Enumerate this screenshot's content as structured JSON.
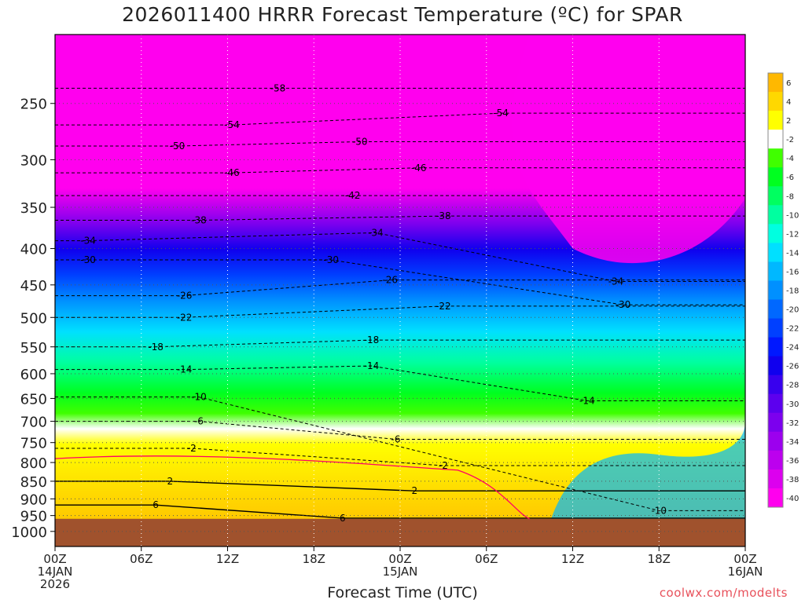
{
  "chart_data": {
    "type": "heatmap",
    "title": "2026011400 HRRR Forecast Temperature (ºC) for SPAR",
    "xlabel": "Forecast Time (UTC)",
    "ylabel": "",
    "y_scale": "log",
    "ylim": [
      1050,
      200
    ],
    "yticks": [
      250,
      300,
      350,
      400,
      450,
      500,
      550,
      600,
      650,
      700,
      750,
      800,
      850,
      900,
      950,
      1000
    ],
    "xlim": [
      0,
      48
    ],
    "xticks": [
      {
        "hour": 0,
        "label": "00Z",
        "sub1": "14JAN",
        "sub2": "2026"
      },
      {
        "hour": 6,
        "label": "06Z",
        "sub1": "",
        "sub2": ""
      },
      {
        "hour": 12,
        "label": "12Z",
        "sub1": "",
        "sub2": ""
      },
      {
        "hour": 18,
        "label": "18Z",
        "sub1": "",
        "sub2": ""
      },
      {
        "hour": 24,
        "label": "00Z",
        "sub1": "15JAN",
        "sub2": ""
      },
      {
        "hour": 30,
        "label": "06Z",
        "sub1": "",
        "sub2": ""
      },
      {
        "hour": 36,
        "label": "12Z",
        "sub1": "",
        "sub2": ""
      },
      {
        "hour": 42,
        "label": "18Z",
        "sub1": "",
        "sub2": ""
      },
      {
        "hour": 48,
        "label": "00Z",
        "sub1": "16JAN",
        "sub2": ""
      }
    ],
    "grid": true,
    "colorbar": {
      "placement": "right",
      "labels": [
        "6",
        "4",
        "2",
        "-2",
        "-4",
        "-6",
        "-8",
        "-10",
        "-12",
        "-14",
        "-16",
        "-18",
        "-20",
        "-22",
        "-24",
        "-26",
        "-28",
        "-30",
        "-32",
        "-34",
        "-36",
        "-38",
        "-40"
      ],
      "colors": [
        "#ffb800",
        "#ffd800",
        "#ffff00",
        "#ffffff",
        "#40ff00",
        "#00ff20",
        "#00ff60",
        "#00ffa0",
        "#00ffe0",
        "#00e0ff",
        "#00b8ff",
        "#0090ff",
        "#0068ff",
        "#0040ff",
        "#0018ff",
        "#1000ee",
        "#3800ee",
        "#5c00ee",
        "#7c00ee",
        "#9c00ee",
        "#bc00ee",
        "#dc00ee",
        "#ff00ee"
      ]
    },
    "contour_labels": [
      {
        "text": "-58",
        "hour": 15.5,
        "p": 238
      },
      {
        "text": "-54",
        "hour": 12.3,
        "p": 268
      },
      {
        "text": "-54",
        "hour": 31.0,
        "p": 258
      },
      {
        "text": "-50",
        "hour": 8.5,
        "p": 287
      },
      {
        "text": "-50",
        "hour": 21.2,
        "p": 283
      },
      {
        "text": "-46",
        "hour": 12.3,
        "p": 313
      },
      {
        "text": "-46",
        "hour": 25.3,
        "p": 308
      },
      {
        "text": "-42",
        "hour": 20.7,
        "p": 337
      },
      {
        "text": "-38",
        "hour": 10.0,
        "p": 365
      },
      {
        "text": "-38",
        "hour": 27.0,
        "p": 360
      },
      {
        "text": "-34",
        "hour": 2.3,
        "p": 390
      },
      {
        "text": "-34",
        "hour": 22.3,
        "p": 380
      },
      {
        "text": "-34",
        "hour": 39.0,
        "p": 445
      },
      {
        "text": "-30",
        "hour": 2.3,
        "p": 415
      },
      {
        "text": "-30",
        "hour": 19.2,
        "p": 415
      },
      {
        "text": "-30",
        "hour": 39.5,
        "p": 480
      },
      {
        "text": "-26",
        "hour": 9.0,
        "p": 466
      },
      {
        "text": "-26",
        "hour": 23.3,
        "p": 443
      },
      {
        "text": "-22",
        "hour": 9.0,
        "p": 500
      },
      {
        "text": "-22",
        "hour": 27.0,
        "p": 482
      },
      {
        "text": "-18",
        "hour": 7.0,
        "p": 550
      },
      {
        "text": "-18",
        "hour": 22.0,
        "p": 538
      },
      {
        "text": "-14",
        "hour": 9.0,
        "p": 592
      },
      {
        "text": "-14",
        "hour": 22.0,
        "p": 585
      },
      {
        "text": "-14",
        "hour": 37.0,
        "p": 655
      },
      {
        "text": "-10",
        "hour": 10.0,
        "p": 647
      },
      {
        "text": "-10",
        "hour": 42.0,
        "p": 935
      },
      {
        "text": "-6",
        "hour": 10.0,
        "p": 700
      },
      {
        "text": "-6",
        "hour": 23.7,
        "p": 742
      },
      {
        "text": "-2",
        "hour": 9.5,
        "p": 764
      },
      {
        "text": "-2",
        "hour": 27.0,
        "p": 808
      },
      {
        "text": "2",
        "hour": 8.0,
        "p": 850
      },
      {
        "text": "2",
        "hour": 25.0,
        "p": 877
      },
      {
        "text": "6",
        "hour": 7.0,
        "p": 918
      },
      {
        "text": "6",
        "hour": 20.0,
        "p": 958
      }
    ]
  },
  "credit": "coolwx.com/modelts"
}
